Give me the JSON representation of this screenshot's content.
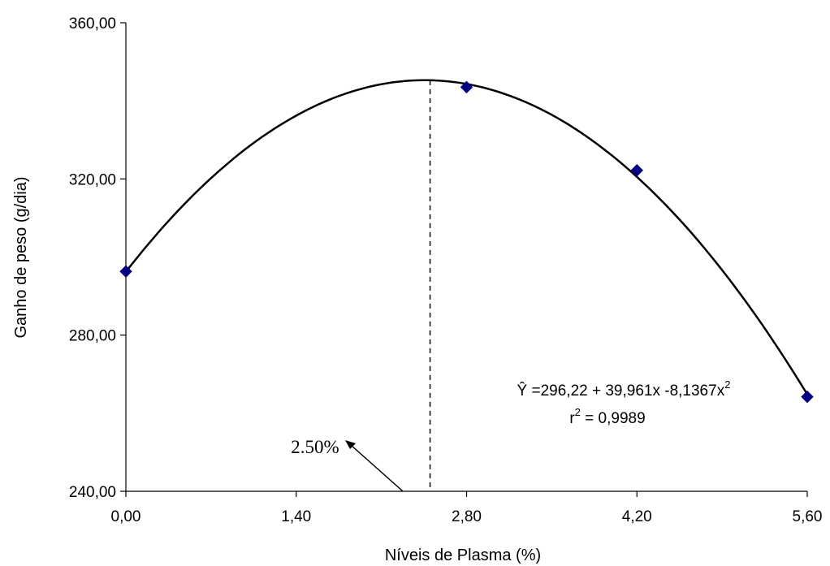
{
  "chart_data": {
    "type": "scatter",
    "title": "",
    "xlabel": "Níveis de Plasma (%)",
    "ylabel": "Ganho de peso (g/dia)",
    "xlim": [
      0,
      5.6
    ],
    "ylim": [
      240,
      360
    ],
    "x_ticks": [
      0,
      1.4,
      2.8,
      4.2,
      5.6
    ],
    "x_tick_labels": [
      "0,00",
      "1,40",
      "2,80",
      "4,20",
      "5,60"
    ],
    "y_ticks": [
      240,
      280,
      320,
      360
    ],
    "y_tick_labels": [
      "240,00",
      "280,00",
      "320,00",
      "360,00"
    ],
    "grid": false,
    "marker_color": "#000080",
    "line_color": "#000000",
    "series": [
      {
        "x": [
          0,
          2.8,
          4.2,
          5.6
        ],
        "y": [
          296.3,
          343.5,
          322.2,
          264.2
        ]
      }
    ],
    "trendline": {
      "type": "polynomial",
      "coefficients": [
        296.22,
        39.961,
        -8.1367
      ],
      "equation_lhs": "Ŷ =296,22 + 39,961x -8,1367x",
      "equation_sup": "2",
      "r2_prefix": "r",
      "r2_sup": "2",
      "r2_value": " = 0,9989"
    },
    "annotations": [
      {
        "text": "2.50%",
        "x_value": 2.5
      }
    ]
  }
}
